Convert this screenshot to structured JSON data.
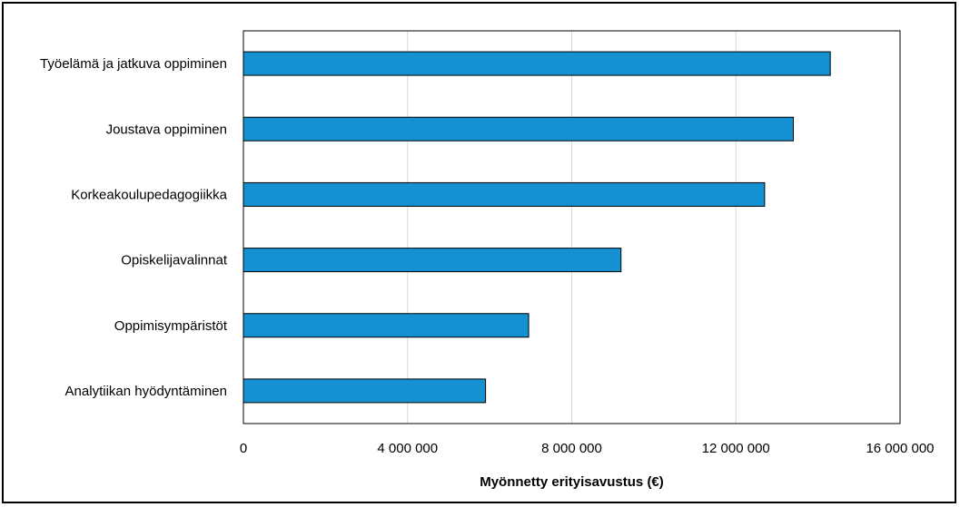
{
  "chart_data": {
    "type": "bar",
    "orientation": "horizontal",
    "categories": [
      "Työelämä ja jatkuva oppiminen",
      "Joustava oppiminen",
      "Korkeakoulupedagogiikka",
      "Opiskelijavalinnat",
      "Oppimisympäristöt",
      "Analytiikan hyödyntäminen"
    ],
    "values": [
      14300000,
      13400000,
      12700000,
      9200000,
      6950000,
      5900000
    ],
    "xlabel": "Myönnetty erityisavustus (€)",
    "ylabel": "",
    "xlim": [
      0,
      16000000
    ],
    "xticks": [
      0,
      4000000,
      8000000,
      12000000,
      16000000
    ],
    "xtick_labels": [
      "0",
      "4 000 000",
      "8 000 000",
      "12 000 000",
      "16 000 000"
    ],
    "grid": "vertical",
    "bar_color": "#1591d1",
    "bar_edge_color": "#000000",
    "grid_color": "#d9d9d9"
  }
}
